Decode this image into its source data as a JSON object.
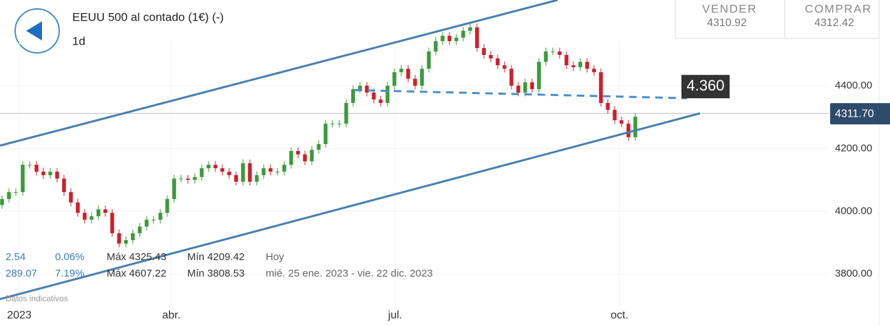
{
  "header": {
    "title": "EEUU 500 al contado (1€) (-)",
    "interval": "1d"
  },
  "quote": {
    "sell_label": "VENDER",
    "sell": "4310.92",
    "buy_label": "COMPRAR",
    "buy": "4312.42"
  },
  "stats": [
    [
      "2.54",
      "0.06%",
      "Máx 4325.43",
      "Mín 4209.42",
      "Hoy"
    ],
    [
      "289.07",
      "7.19%",
      "Máx 4607.22",
      "Mín 3808.53",
      "mié. 25 ene. 2023 - vie. 22 dic. 2023"
    ]
  ],
  "footnote": "Datos indicativos",
  "chart_data": {
    "type": "candlestick",
    "up_color": "#3a9a3a",
    "down_color": "#cc1f2a",
    "xlim": [
      -0.3,
      120.2
    ],
    "xticks": [
      {
        "value": 2.5,
        "label": "2023"
      },
      {
        "value": 24.6,
        "label": "abr."
      },
      {
        "value": 57.1,
        "label": "jul."
      },
      {
        "value": 89.7,
        "label": "oct."
      }
    ],
    "ylim": [
      3700,
      4673
    ],
    "yticks": [
      {
        "value": 3800,
        "label": "3800.00"
      },
      {
        "value": 4000,
        "label": "4000.00"
      },
      {
        "value": 4200,
        "label": "4200.00"
      },
      {
        "value": 4400,
        "label": "4400.00"
      }
    ],
    "grid": true,
    "open": [
      4020,
      4039,
      4061,
      4061,
      4148,
      4148,
      4126,
      4115,
      4126,
      4104,
      4061,
      4028,
      3995,
      3973,
      3984,
      4006,
      3995,
      3930,
      3897,
      3908,
      3930,
      3951,
      3973,
      3973,
      3995,
      4039,
      4104,
      4104,
      4100,
      4109,
      4137,
      4148,
      4137,
      4126,
      4115,
      4094,
      4153,
      4094,
      4115,
      4137,
      4126,
      4126,
      4148,
      4192,
      4181,
      4159,
      4196,
      4214,
      4279,
      4279,
      4279,
      4345,
      4389,
      4400,
      4378,
      4356,
      4345,
      4400,
      4443,
      4454,
      4422,
      4400,
      4454,
      4509,
      4542,
      4559,
      4542,
      4553,
      4575,
      4586,
      4520,
      4498,
      4487,
      4465,
      4454,
      4400,
      4378,
      4411,
      4389,
      4476,
      4509,
      4509,
      4498,
      4465,
      4459,
      4476,
      4454,
      4443,
      4345,
      4323,
      4290,
      4279,
      4236
    ],
    "high": [
      4051,
      4073,
      4073,
      4160,
      4160,
      4160,
      4138,
      4138,
      4138,
      4116,
      4073,
      4040,
      4007,
      3996,
      4018,
      4018,
      4007,
      3942,
      3920,
      3942,
      3963,
      3985,
      3985,
      4007,
      4051,
      4116,
      4116,
      4116,
      4121,
      4149,
      4160,
      4160,
      4149,
      4138,
      4127,
      4165,
      4165,
      4127,
      4149,
      4149,
      4138,
      4160,
      4204,
      4204,
      4193,
      4208,
      4226,
      4291,
      4291,
      4291,
      4357,
      4401,
      4412,
      4412,
      4390,
      4368,
      4412,
      4455,
      4466,
      4466,
      4434,
      4466,
      4521,
      4554,
      4571,
      4571,
      4565,
      4587,
      4598,
      4598,
      4532,
      4510,
      4499,
      4477,
      4466,
      4412,
      4423,
      4423,
      4488,
      4521,
      4521,
      4521,
      4510,
      4477,
      4488,
      4488,
      4466,
      4455,
      4357,
      4335,
      4302,
      4291,
      4313
    ],
    "low": [
      4008,
      4027,
      4049,
      4049,
      4136,
      4114,
      4103,
      4103,
      4092,
      4049,
      4016,
      3983,
      3961,
      3961,
      3972,
      3983,
      3918,
      3885,
      3885,
      3896,
      3918,
      3939,
      3961,
      3961,
      3983,
      4027,
      4092,
      4088,
      4088,
      4097,
      4125,
      4125,
      4114,
      4103,
      4082,
      4082,
      4082,
      4082,
      4103,
      4114,
      4114,
      4114,
      4136,
      4169,
      4147,
      4147,
      4184,
      4202,
      4267,
      4267,
      4267,
      4333,
      4377,
      4366,
      4344,
      4333,
      4333,
      4388,
      4431,
      4410,
      4388,
      4388,
      4442,
      4497,
      4530,
      4530,
      4530,
      4541,
      4563,
      4508,
      4486,
      4475,
      4453,
      4442,
      4388,
      4366,
      4366,
      4377,
      4377,
      4464,
      4497,
      4486,
      4453,
      4447,
      4447,
      4442,
      4431,
      4333,
      4311,
      4278,
      4267,
      4224,
      4224
    ],
    "close": [
      4039,
      4061,
      4061,
      4148,
      4148,
      4126,
      4115,
      4126,
      4104,
      4061,
      4028,
      3995,
      3973,
      3984,
      4006,
      3995,
      3930,
      3897,
      3908,
      3930,
      3951,
      3973,
      3973,
      3995,
      4039,
      4104,
      4104,
      4100,
      4109,
      4137,
      4148,
      4137,
      4126,
      4115,
      4094,
      4153,
      4094,
      4115,
      4137,
      4126,
      4126,
      4148,
      4192,
      4181,
      4159,
      4196,
      4214,
      4279,
      4279,
      4279,
      4345,
      4389,
      4400,
      4378,
      4356,
      4345,
      4400,
      4443,
      4454,
      4422,
      4400,
      4454,
      4509,
      4542,
      4559,
      4542,
      4553,
      4575,
      4586,
      4520,
      4498,
      4487,
      4465,
      4454,
      4400,
      4378,
      4411,
      4389,
      4476,
      4509,
      4509,
      4498,
      4465,
      4459,
      4476,
      4454,
      4443,
      4345,
      4323,
      4290,
      4279,
      4236,
      4301
    ],
    "trend_lines": [
      {
        "x": [
          -0.3,
          80.7
        ],
        "y": [
          4209,
          4673
        ],
        "color": "#4a7fad"
      },
      {
        "x": [
          -0.3,
          101.4
        ],
        "y": [
          3720,
          4312
        ],
        "color": "#4a7fad"
      }
    ],
    "level_line": {
      "x": [
        51.2,
        99.5
      ],
      "y": [
        4386,
        4360
      ],
      "color": "#4a8fc8",
      "label": "4.360"
    },
    "last_price": {
      "value": 4311.7,
      "label": "4311.70",
      "color": "#2f4b6b"
    }
  }
}
